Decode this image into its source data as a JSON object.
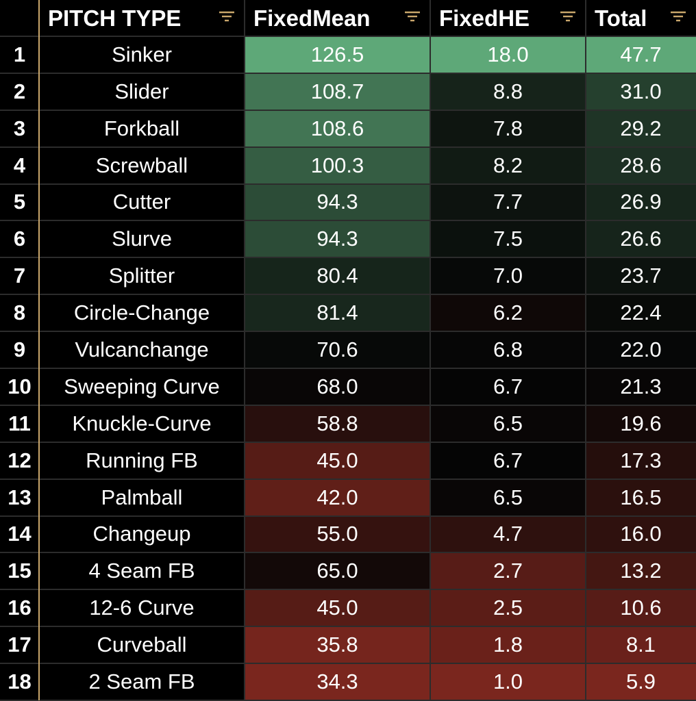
{
  "chart_data": {
    "type": "table",
    "columns": [
      "PITCH TYPE",
      "FixedMean",
      "FixedHE",
      "Total"
    ],
    "rows": [
      {
        "n": "1",
        "pitch": "Sinker",
        "fixed_mean": "126.5",
        "fixed_he": "18.0",
        "total": "47.7"
      },
      {
        "n": "2",
        "pitch": "Slider",
        "fixed_mean": "108.7",
        "fixed_he": "8.8",
        "total": "31.0"
      },
      {
        "n": "3",
        "pitch": "Forkball",
        "fixed_mean": "108.6",
        "fixed_he": "7.8",
        "total": "29.2"
      },
      {
        "n": "4",
        "pitch": "Screwball",
        "fixed_mean": "100.3",
        "fixed_he": "8.2",
        "total": "28.6"
      },
      {
        "n": "5",
        "pitch": "Cutter",
        "fixed_mean": "94.3",
        "fixed_he": "7.7",
        "total": "26.9"
      },
      {
        "n": "6",
        "pitch": "Slurve",
        "fixed_mean": "94.3",
        "fixed_he": "7.5",
        "total": "26.6"
      },
      {
        "n": "7",
        "pitch": "Splitter",
        "fixed_mean": "80.4",
        "fixed_he": "7.0",
        "total": "23.7"
      },
      {
        "n": "8",
        "pitch": "Circle-Change",
        "fixed_mean": "81.4",
        "fixed_he": "6.2",
        "total": "22.4"
      },
      {
        "n": "9",
        "pitch": "Vulcanchange",
        "fixed_mean": "70.6",
        "fixed_he": "6.8",
        "total": "22.0"
      },
      {
        "n": "10",
        "pitch": "Sweeping Curve",
        "fixed_mean": "68.0",
        "fixed_he": "6.7",
        "total": "21.3"
      },
      {
        "n": "11",
        "pitch": "Knuckle-Curve",
        "fixed_mean": "58.8",
        "fixed_he": "6.5",
        "total": "19.6"
      },
      {
        "n": "12",
        "pitch": "Running FB",
        "fixed_mean": "45.0",
        "fixed_he": "6.7",
        "total": "17.3"
      },
      {
        "n": "13",
        "pitch": "Palmball",
        "fixed_mean": "42.0",
        "fixed_he": "6.5",
        "total": "16.5"
      },
      {
        "n": "14",
        "pitch": "Changeup",
        "fixed_mean": "55.0",
        "fixed_he": "4.7",
        "total": "16.0"
      },
      {
        "n": "15",
        "pitch": "4 Seam FB",
        "fixed_mean": "65.0",
        "fixed_he": "2.7",
        "total": "13.2"
      },
      {
        "n": "16",
        "pitch": "12-6 Curve",
        "fixed_mean": "45.0",
        "fixed_he": "2.5",
        "total": "10.6"
      },
      {
        "n": "17",
        "pitch": "Curveball",
        "fixed_mean": "35.8",
        "fixed_he": "1.8",
        "total": "8.1"
      },
      {
        "n": "18",
        "pitch": "2 Seam FB",
        "fixed_mean": "34.3",
        "fixed_he": "1.0",
        "total": "5.9"
      }
    ]
  },
  "colors": {
    "high": "#5ea878",
    "mid": "#050505",
    "low": "#7a261e",
    "grid": "#2c2c2c",
    "accent": "#c9a66b"
  },
  "icons": {
    "filter": "filter-icon"
  }
}
